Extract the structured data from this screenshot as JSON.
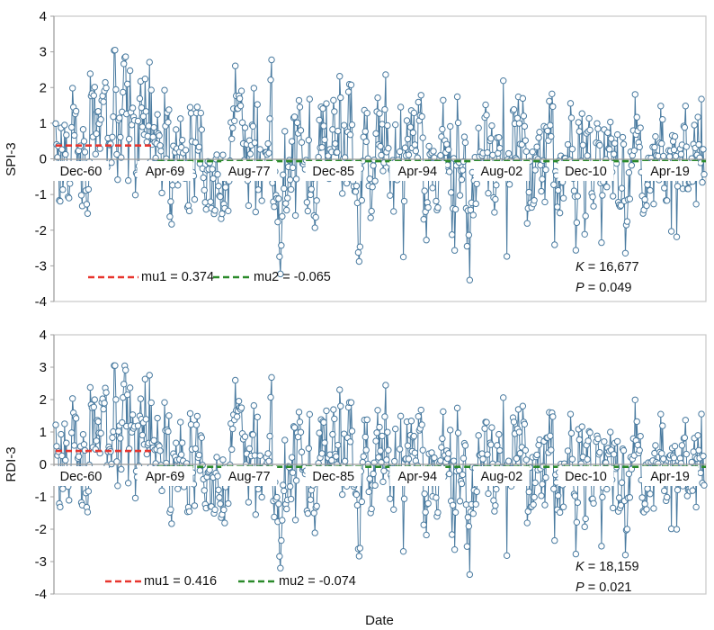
{
  "chart_data": [
    {
      "type": "line",
      "ylabel": "SPI-3",
      "xlabel": "",
      "ylim": [
        -4,
        4
      ],
      "yticks": [
        4,
        3,
        2,
        1,
        0,
        -1,
        -2,
        -3,
        -4
      ],
      "x_tick_labels": [
        "Dec-60",
        "Apr-69",
        "Aug-77",
        "Dec-85",
        "Apr-94",
        "Aug-02",
        "Dec-10",
        "Apr-19"
      ],
      "x_range_months": [
        "Jan-60",
        "Feb-21"
      ],
      "change_point": "Apr-69",
      "mean_lines": [
        {
          "name": "mu1",
          "value": 0.374,
          "label": "mu1 = 0.374",
          "color": "#e8352e",
          "from": "Jan-60",
          "to": "Apr-69"
        },
        {
          "name": "mu2",
          "value": -0.065,
          "label": "mu2 = -0.065",
          "color": "#2a8a2a",
          "from": "Apr-69",
          "to": "Feb-21"
        }
      ],
      "stats": {
        "K": "16,677",
        "P": "0.049"
      },
      "series_color": "#4a7ba0",
      "series_seed": 17,
      "series_summary": {
        "max": 2.95,
        "min": -3.3,
        "segment1_mean": 0.374,
        "segment2_mean": -0.065
      }
    },
    {
      "type": "line",
      "ylabel": "RDI-3",
      "xlabel": "Date",
      "ylim": [
        -4,
        4
      ],
      "yticks": [
        4,
        3,
        2,
        1,
        0,
        -1,
        -2,
        -3,
        -4
      ],
      "x_tick_labels": [
        "Dec-60",
        "Apr-69",
        "Aug-77",
        "Dec-85",
        "Apr-94",
        "Aug-02",
        "Dec-10",
        "Apr-19"
      ],
      "x_range_months": [
        "Jan-60",
        "Feb-21"
      ],
      "change_point": "Apr-69",
      "mean_lines": [
        {
          "name": "mu1",
          "value": 0.416,
          "label": "mu1 = 0.416",
          "color": "#e8352e",
          "from": "Jan-60",
          "to": "Apr-69"
        },
        {
          "name": "mu2",
          "value": -0.074,
          "label": "mu2 = -0.074",
          "color": "#2a8a2a",
          "from": "Apr-69",
          "to": "Feb-21"
        }
      ],
      "stats": {
        "K": "18,159",
        "P": "0.021"
      },
      "series_color": "#4a7ba0",
      "series_seed": 17,
      "series_summary": {
        "max": 3.05,
        "min": -3.2,
        "segment1_mean": 0.416,
        "segment2_mean": -0.074
      }
    }
  ],
  "labels": {
    "top_ylabel": "SPI-3",
    "bottom_ylabel": "RDI-3",
    "xlabel": "Date",
    "top_mu1": "mu1 = 0.374",
    "top_mu2": "mu2 = -0.065",
    "bottom_mu1": "mu1 = 0.416",
    "bottom_mu2": "mu2 = -0.074",
    "top_K_sym": "K",
    "top_K_val": " = 16,677",
    "top_P_sym": "P",
    "top_P_val": " = 0.049",
    "bottom_K_sym": "K",
    "bottom_K_val": " = 18,159",
    "bottom_P_sym": "P",
    "bottom_P_val": " = 0.021"
  }
}
